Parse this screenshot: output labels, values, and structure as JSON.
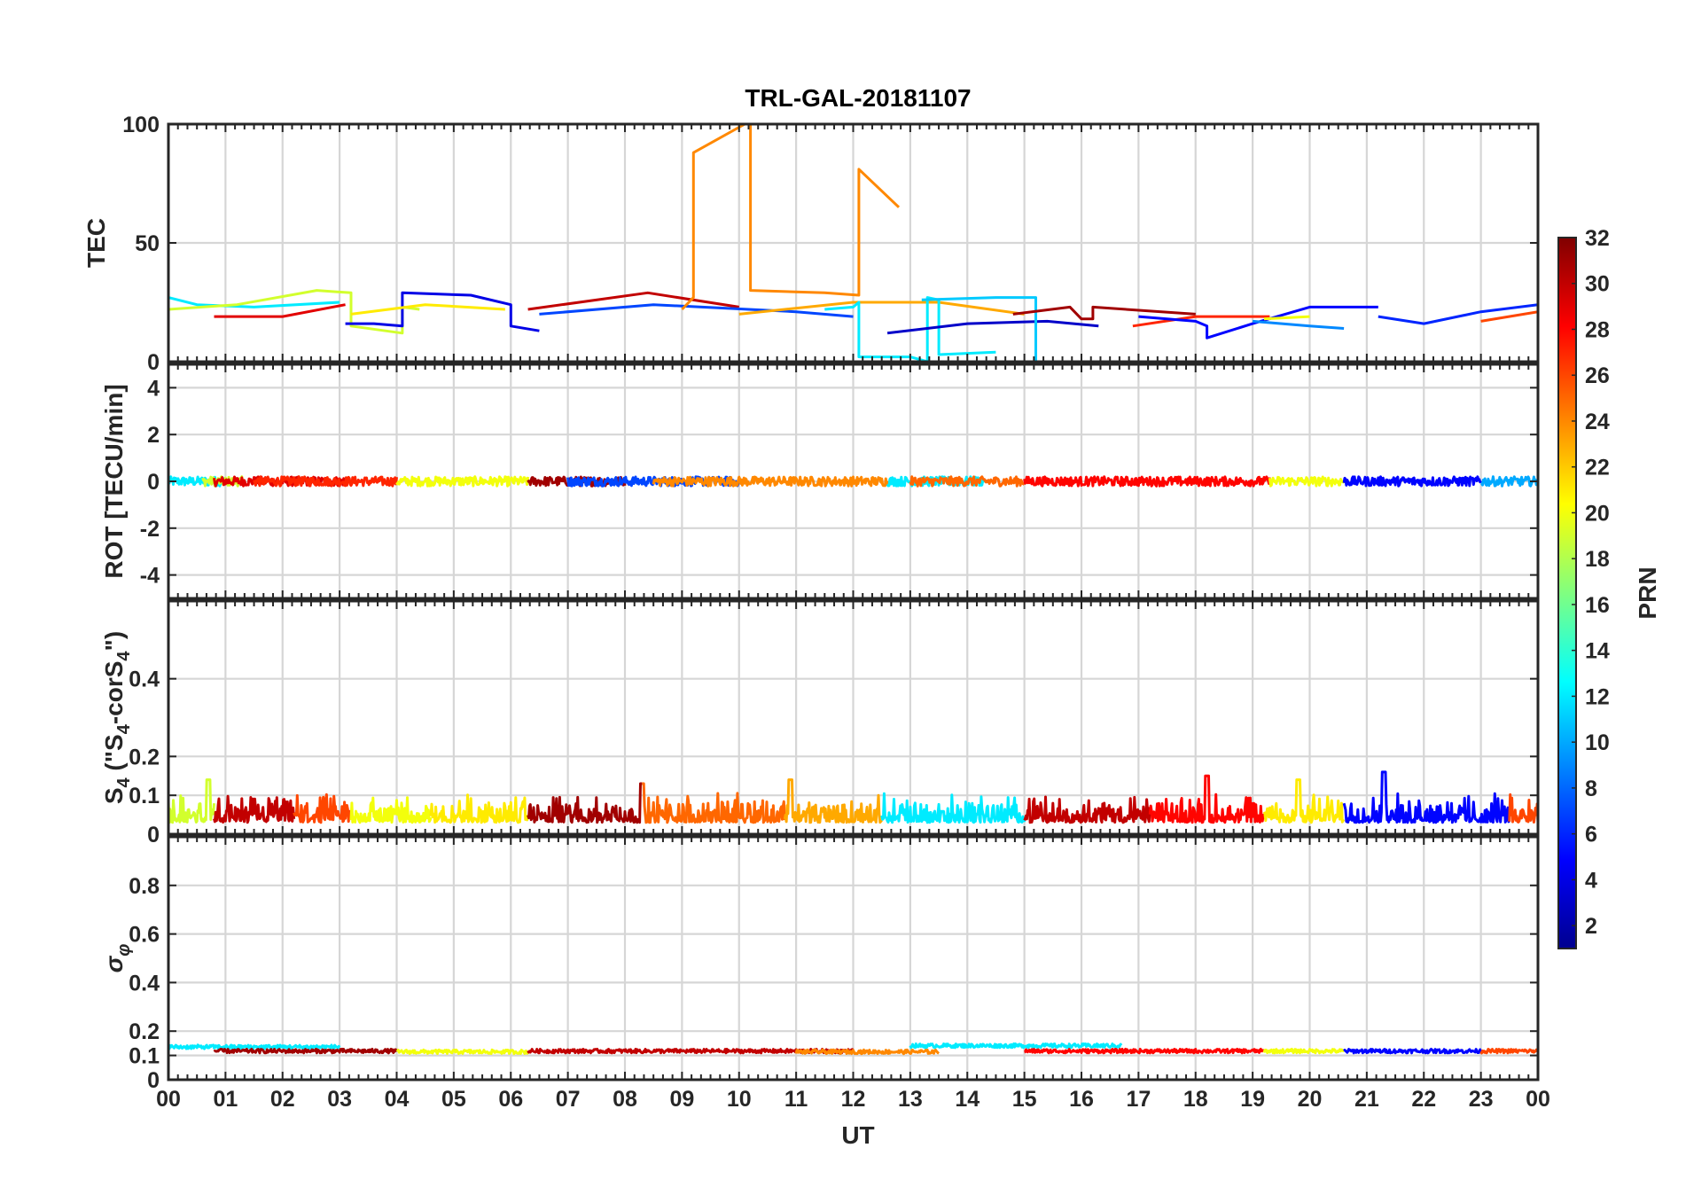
{
  "chart_data": {
    "type": "line",
    "title": "TRL-GAL-20181107",
    "xlabel": "UT",
    "x_unit": "hours",
    "xlim": [
      0,
      24
    ],
    "x_tick_labels": [
      "00",
      "01",
      "02",
      "03",
      "04",
      "05",
      "06",
      "07",
      "08",
      "09",
      "10",
      "11",
      "12",
      "13",
      "14",
      "15",
      "16",
      "17",
      "18",
      "19",
      "20",
      "21",
      "22",
      "23",
      "00"
    ],
    "grid": true,
    "colorbar": {
      "label": "PRN",
      "range": [
        1,
        32
      ],
      "ticks": [
        "2",
        "4",
        "6",
        "8",
        "10",
        "12",
        "14",
        "16",
        "18",
        "20",
        "22",
        "24",
        "26",
        "28",
        "30",
        "32"
      ],
      "colormap": "jet",
      "colors": [
        "#00008f",
        "#0000ff",
        "#0080ff",
        "#00ffff",
        "#80ff80",
        "#ffff00",
        "#ff8000",
        "#ff0000",
        "#800000"
      ]
    },
    "panels": [
      {
        "id": "tec",
        "ylabel": "TEC",
        "ylim": [
          0,
          100
        ],
        "y_ticks": [
          0,
          50,
          100
        ],
        "y_tick_labels": [
          "0",
          "50",
          "100"
        ],
        "series": [
          {
            "prn": 12,
            "x": [
              0.0,
              0.5,
              1.5,
              3.0
            ],
            "y": [
              27,
              24,
              23,
              25
            ]
          },
          {
            "prn": 19,
            "x": [
              0.0,
              1.2,
              2.6,
              3.2,
              3.2,
              4.1,
              4.1,
              4.4
            ],
            "y": [
              22,
              24,
              30,
              29,
              15,
              12,
              23,
              22
            ]
          },
          {
            "prn": 29,
            "x": [
              0.8,
              2.0,
              3.1
            ],
            "y": [
              19,
              19,
              24
            ]
          },
          {
            "prn": 4,
            "x": [
              3.1,
              3.6,
              4.1,
              4.1,
              5.3,
              6.0,
              6.0,
              6.5
            ],
            "y": [
              16,
              16,
              15,
              29,
              28,
              24,
              15,
              13
            ]
          },
          {
            "prn": 21,
            "x": [
              3.2,
              4.5,
              5.9
            ],
            "y": [
              20,
              24,
              22
            ]
          },
          {
            "prn": 30,
            "x": [
              6.3,
              8.4,
              10.0
            ],
            "y": [
              22,
              29,
              23
            ]
          },
          {
            "prn": 7,
            "x": [
              6.5,
              8.5,
              11.0,
              12.0
            ],
            "y": [
              20,
              24,
              21,
              19
            ]
          },
          {
            "prn": 24,
            "x": [
              9.0,
              9.2,
              9.2,
              10.1,
              10.2,
              10.2,
              11.5,
              12.1,
              12.1,
              12.8
            ],
            "y": [
              22,
              27,
              88,
              100,
              100,
              30,
              29,
              28,
              81,
              65
            ]
          },
          {
            "prn": 23,
            "x": [
              10.0,
              12.0,
              13.5,
              15.0
            ],
            "y": [
              20,
              25,
              25,
              20
            ]
          },
          {
            "prn": 12,
            "x": [
              11.5,
              12.0,
              12.1,
              12.1,
              13.0,
              13.3,
              13.3,
              13.5,
              13.5,
              14.5
            ],
            "y": [
              22,
              23,
              25,
              2,
              2,
              0,
              27,
              26,
              3,
              4
            ]
          },
          {
            "prn": 3,
            "x": [
              12.6,
              14.0,
              15.4,
              16.3
            ],
            "y": [
              12,
              16,
              17,
              15
            ]
          },
          {
            "prn": 11,
            "x": [
              13.2,
              14.5,
              15.2,
              15.2,
              16.7
            ],
            "y": [
              26,
              27,
              27,
              -4,
              -1
            ]
          },
          {
            "prn": 31,
            "x": [
              14.8,
              15.8,
              16.0,
              16.2,
              16.2,
              18.0
            ],
            "y": [
              20,
              23,
              18,
              18,
              23,
              20
            ]
          },
          {
            "prn": 27,
            "x": [
              16.9,
              18.0,
              19.3
            ],
            "y": [
              15,
              19,
              19
            ]
          },
          {
            "prn": 5,
            "x": [
              17.0,
              18.0,
              18.2,
              18.2,
              19.0,
              20.0,
              21.2
            ],
            "y": [
              19,
              17,
              15,
              10,
              16,
              23,
              23
            ]
          },
          {
            "prn": 9,
            "x": [
              19.0,
              20.0,
              20.6
            ],
            "y": [
              17,
              15,
              14
            ]
          },
          {
            "prn": 20,
            "x": [
              19.2,
              20.0
            ],
            "y": [
              18,
              19
            ]
          },
          {
            "prn": 6,
            "x": [
              21.2,
              22.0,
              23.0,
              24.0
            ],
            "y": [
              19,
              16,
              21,
              24
            ]
          },
          {
            "prn": 26,
            "x": [
              23.0,
              24.0
            ],
            "y": [
              17,
              21
            ]
          }
        ]
      },
      {
        "id": "rot",
        "ylabel": "ROT [TECU/min]",
        "ylim": [
          -5,
          5
        ],
        "y_ticks": [
          -4,
          -2,
          0,
          2,
          4
        ],
        "y_tick_labels": [
          "-4",
          "-2",
          "0",
          "2",
          "4"
        ],
        "noise_baseline": 0,
        "noise_amplitude": 0.2,
        "segments": [
          {
            "prn": 12,
            "x0": 0.0,
            "x1": 1.0
          },
          {
            "prn": 19,
            "x0": 0.6,
            "x1": 1.3
          },
          {
            "prn": 29,
            "x0": 0.8,
            "x1": 3.1
          },
          {
            "prn": 27,
            "x0": 1.5,
            "x1": 4.0
          },
          {
            "prn": 20,
            "x0": 4.0,
            "x1": 6.3
          },
          {
            "prn": 31,
            "x0": 6.3,
            "x1": 8.0
          },
          {
            "prn": 7,
            "x0": 7.0,
            "x1": 10.0
          },
          {
            "prn": 24,
            "x0": 8.5,
            "x1": 12.6
          },
          {
            "prn": 12,
            "x0": 12.6,
            "x1": 14.3
          },
          {
            "prn": 25,
            "x0": 13.0,
            "x1": 15.0
          },
          {
            "prn": 28,
            "x0": 15.0,
            "x1": 19.3
          },
          {
            "prn": 20,
            "x0": 19.3,
            "x1": 20.6
          },
          {
            "prn": 5,
            "x0": 20.6,
            "x1": 23.0
          },
          {
            "prn": 10,
            "x0": 23.0,
            "x1": 24.0
          }
        ]
      },
      {
        "id": "s4",
        "ylabel": "S4 (\"S4-corS4\")",
        "ylim": [
          0,
          0.6
        ],
        "y_ticks": [
          0,
          0.1,
          0.2,
          0.4
        ],
        "y_tick_labels": [
          "0",
          "0.1",
          "0.2",
          "0.4"
        ],
        "noise_baseline": 0.045,
        "noise_amplitude": 0.04,
        "peaks": [
          {
            "x": 0.7,
            "y": 0.14
          },
          {
            "x": 8.3,
            "y": 0.13
          },
          {
            "x": 10.9,
            "y": 0.14
          },
          {
            "x": 18.2,
            "y": 0.15
          },
          {
            "x": 19.8,
            "y": 0.14
          },
          {
            "x": 21.3,
            "y": 0.16
          }
        ],
        "segments": [
          {
            "prn": 19,
            "x0": 0.0,
            "x1": 0.8
          },
          {
            "prn": 30,
            "x0": 0.8,
            "x1": 2.2
          },
          {
            "prn": 26,
            "x0": 2.2,
            "x1": 3.2
          },
          {
            "prn": 20,
            "x0": 3.2,
            "x1": 4.6
          },
          {
            "prn": 21,
            "x0": 4.6,
            "x1": 6.3
          },
          {
            "prn": 31,
            "x0": 6.3,
            "x1": 8.3
          },
          {
            "prn": 25,
            "x0": 8.3,
            "x1": 10.8
          },
          {
            "prn": 23,
            "x0": 10.8,
            "x1": 12.5
          },
          {
            "prn": 12,
            "x0": 12.5,
            "x1": 15.0
          },
          {
            "prn": 30,
            "x0": 15.0,
            "x1": 17.2
          },
          {
            "prn": 28,
            "x0": 17.2,
            "x1": 19.2
          },
          {
            "prn": 21,
            "x0": 19.2,
            "x1": 20.6
          },
          {
            "prn": 5,
            "x0": 20.6,
            "x1": 23.5
          },
          {
            "prn": 26,
            "x0": 23.5,
            "x1": 24.0
          }
        ]
      },
      {
        "id": "sigma_phi",
        "ylabel": "σφ",
        "ylim": [
          0,
          1
        ],
        "y_ticks": [
          0,
          0.1,
          0.2,
          0.4,
          0.6,
          0.8
        ],
        "y_tick_labels": [
          "0",
          "0.1",
          "0.2",
          "0.4",
          "0.6",
          "0.8"
        ],
        "noise_baseline": 0.12,
        "noise_amplitude": 0.008,
        "segments": [
          {
            "prn": 12,
            "x0": 0.0,
            "x1": 3.0,
            "y": 0.135
          },
          {
            "prn": 31,
            "x0": 0.8,
            "x1": 4.0,
            "y": 0.118
          },
          {
            "prn": 20,
            "x0": 4.0,
            "x1": 6.3,
            "y": 0.115
          },
          {
            "prn": 30,
            "x0": 6.3,
            "x1": 12.0,
            "y": 0.118
          },
          {
            "prn": 24,
            "x0": 11.0,
            "x1": 13.5,
            "y": 0.115
          },
          {
            "prn": 12,
            "x0": 13.0,
            "x1": 16.7,
            "y": 0.14
          },
          {
            "prn": 28,
            "x0": 15.0,
            "x1": 19.2,
            "y": 0.118
          },
          {
            "prn": 20,
            "x0": 19.2,
            "x1": 20.6,
            "y": 0.118
          },
          {
            "prn": 5,
            "x0": 20.6,
            "x1": 23.0,
            "y": 0.118
          },
          {
            "prn": 26,
            "x0": 23.0,
            "x1": 24.0,
            "y": 0.118
          }
        ]
      }
    ]
  }
}
